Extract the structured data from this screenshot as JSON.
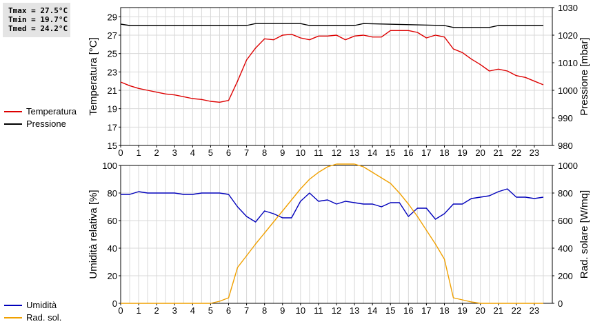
{
  "stats": {
    "tmax": "Tmax = 27.5°C",
    "tmin": "Tmin = 19.7°C",
    "tmed": "Tmed = 24.2°C"
  },
  "legend_top": [
    {
      "label": "Temperatura",
      "color": "#dd0000"
    },
    {
      "label": "Pressione",
      "color": "#000000"
    }
  ],
  "legend_bottom": [
    {
      "label": "Umidità",
      "color": "#0000bb"
    },
    {
      "label": "Rad. sol.",
      "color": "#f0a000"
    }
  ],
  "chart_data": [
    {
      "type": "line",
      "x_ticks": [
        "0",
        "1",
        "2",
        "3",
        "4",
        "5",
        "6",
        "7",
        "8",
        "9",
        "10",
        "11",
        "12",
        "13",
        "14",
        "15",
        "16",
        "17",
        "18",
        "19",
        "20",
        "21",
        "22",
        "23"
      ],
      "xlim": [
        0,
        24
      ],
      "grid": true,
      "left_axis": {
        "label": "Temperatura [°C]",
        "ylim": [
          15,
          30
        ],
        "ticks": [
          "15",
          "17",
          "19",
          "21",
          "23",
          "25",
          "27",
          "29"
        ],
        "tick_values": [
          15,
          17,
          19,
          21,
          23,
          25,
          27,
          29
        ]
      },
      "right_axis": {
        "label": "Pressione [mbar]",
        "ylim": [
          980,
          1030
        ],
        "ticks": [
          "980",
          "990",
          "1000",
          "1010",
          "1020",
          "1030"
        ],
        "tick_values": [
          980,
          990,
          1000,
          1010,
          1020,
          1030
        ]
      },
      "series": [
        {
          "name": "Temperatura",
          "axis": "left",
          "color": "#dd0000",
          "x": [
            0,
            0.5,
            1,
            1.5,
            2,
            2.5,
            3,
            3.5,
            4,
            4.5,
            5,
            5.5,
            6,
            6.5,
            7,
            7.5,
            8,
            8.5,
            9,
            9.5,
            10,
            10.5,
            11,
            11.5,
            12,
            12.5,
            13,
            13.5,
            14,
            14.5,
            15,
            15.5,
            16,
            16.5,
            17,
            17.5,
            18,
            18.5,
            19,
            19.5,
            20,
            20.5,
            21,
            21.5,
            22,
            22.5,
            23,
            23.5
          ],
          "y": [
            21.9,
            21.5,
            21.2,
            21.0,
            20.8,
            20.6,
            20.5,
            20.3,
            20.1,
            20.0,
            19.8,
            19.7,
            19.9,
            22.0,
            24.3,
            25.6,
            26.6,
            26.5,
            27.0,
            27.1,
            26.7,
            26.5,
            26.9,
            26.9,
            27.0,
            26.5,
            26.9,
            27.0,
            26.8,
            26.8,
            27.5,
            27.5,
            27.5,
            27.3,
            26.7,
            27.0,
            26.8,
            25.5,
            25.1,
            24.4,
            23.8,
            23.1,
            23.3,
            23.1,
            22.6,
            22.4,
            22.0,
            21.6
          ]
        },
        {
          "name": "Pressione",
          "axis": "right",
          "color": "#000000",
          "x": [
            0,
            0.5,
            7,
            7.5,
            10,
            10.5,
            13,
            13.5,
            18,
            18.5,
            20.5,
            21,
            23.5
          ],
          "y": [
            1024,
            1023.5,
            1023.5,
            1024.2,
            1024.2,
            1023.5,
            1023.5,
            1024.2,
            1023.5,
            1022.8,
            1022.8,
            1023.5,
            1023.5
          ]
        }
      ]
    },
    {
      "type": "line",
      "x_ticks": [
        "0",
        "1",
        "2",
        "3",
        "4",
        "5",
        "6",
        "7",
        "8",
        "9",
        "10",
        "11",
        "12",
        "13",
        "14",
        "15",
        "16",
        "17",
        "18",
        "19",
        "20",
        "21",
        "22",
        "23"
      ],
      "xlim": [
        0,
        24
      ],
      "grid": true,
      "left_axis": {
        "label": "Umidità relativa [%]",
        "ylim": [
          0,
          100
        ],
        "ticks": [
          "0",
          "20",
          "40",
          "60",
          "80",
          "100"
        ],
        "tick_values": [
          0,
          20,
          40,
          60,
          80,
          100
        ]
      },
      "right_axis": {
        "label": "Rad. solare [W/mq]",
        "ylim": [
          0,
          1000
        ],
        "ticks": [
          "0",
          "200",
          "400",
          "600",
          "800",
          "1000"
        ],
        "tick_values": [
          0,
          200,
          400,
          600,
          800,
          1000
        ]
      },
      "series": [
        {
          "name": "Umidità",
          "axis": "left",
          "color": "#0000bb",
          "x": [
            0,
            0.5,
            1,
            1.5,
            2,
            2.5,
            3,
            3.5,
            4,
            4.5,
            5,
            5.5,
            6,
            6.5,
            7,
            7.5,
            8,
            8.5,
            9,
            9.5,
            10,
            10.5,
            11,
            11.5,
            12,
            12.5,
            13,
            13.5,
            14,
            14.5,
            15,
            15.5,
            16,
            16.5,
            17,
            17.5,
            18,
            18.5,
            19,
            19.5,
            20,
            20.5,
            21,
            21.5,
            22,
            22.5,
            23,
            23.5
          ],
          "y": [
            79,
            79,
            81,
            80,
            80,
            80,
            80,
            79,
            79,
            80,
            80,
            80,
            79,
            70,
            63,
            59,
            67,
            65,
            62,
            62,
            74,
            80,
            74,
            75,
            72,
            74,
            73,
            72,
            72,
            70,
            73,
            73,
            63,
            69,
            69,
            61,
            65,
            72,
            72,
            76,
            77,
            78,
            81,
            83,
            77,
            77,
            76,
            77
          ]
        },
        {
          "name": "Rad. sol.",
          "axis": "right",
          "color": "#f0a000",
          "x": [
            0,
            5,
            5.5,
            6,
            6.5,
            7,
            7.5,
            8,
            8.5,
            9,
            9.5,
            10,
            10.5,
            11,
            11.5,
            12,
            12.5,
            13,
            13.5,
            14,
            14.5,
            15,
            15.5,
            16,
            16.5,
            17,
            17.5,
            18,
            18.5,
            19,
            19.5,
            20,
            23.5
          ],
          "y": [
            0,
            0,
            15,
            40,
            260,
            345,
            430,
            510,
            590,
            670,
            750,
            830,
            900,
            950,
            990,
            1010,
            1010,
            1010,
            990,
            950,
            910,
            870,
            800,
            720,
            630,
            530,
            430,
            320,
            40,
            25,
            10,
            0,
            0
          ]
        }
      ]
    }
  ]
}
